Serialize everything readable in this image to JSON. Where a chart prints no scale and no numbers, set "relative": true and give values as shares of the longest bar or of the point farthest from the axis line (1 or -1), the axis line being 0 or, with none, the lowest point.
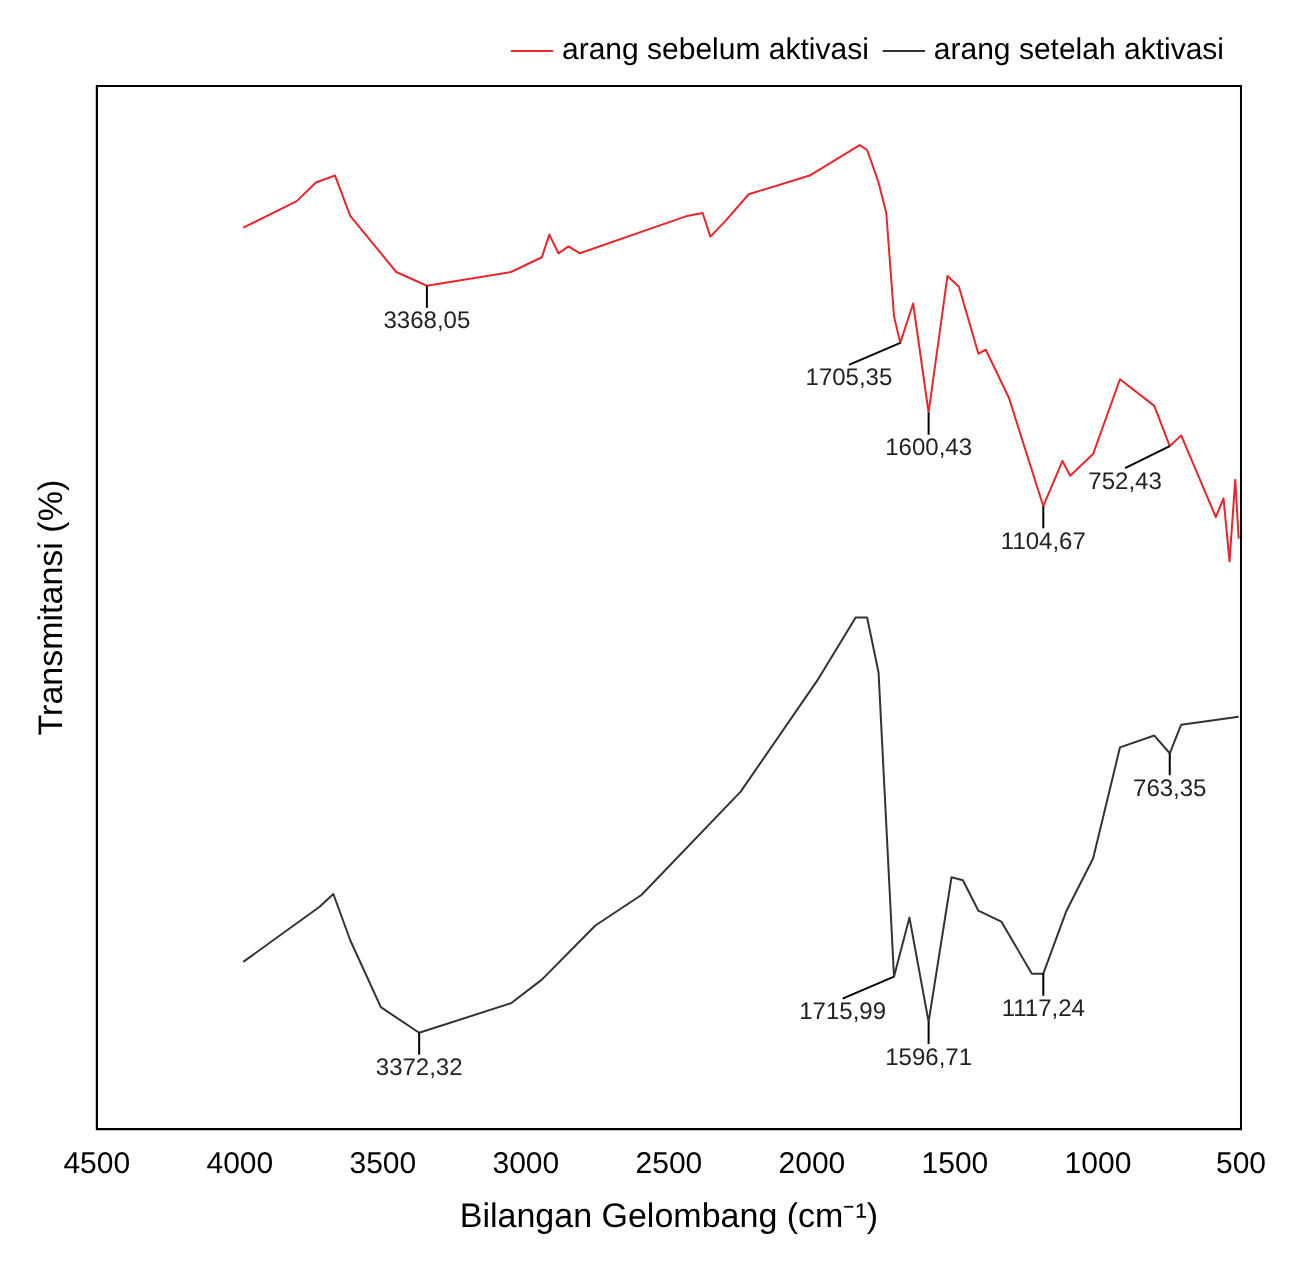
{
  "chart_data": {
    "type": "line",
    "xlabel": "Bilangan Gelombang (cm⁻¹)",
    "ylabel": "Transmitansi (%)",
    "relative": true,
    "xlim": [
      4500,
      500
    ],
    "xticks": [
      4500,
      4000,
      3500,
      3000,
      2500,
      2000,
      1500,
      1000,
      500
    ],
    "grid": false,
    "legend": "top right",
    "marker": "none",
    "line_style": "solid",
    "series": [
      {
        "name": "arang sebelum aktivasi",
        "color": "#e8262a",
        "x": [
          3988,
          3801,
          3734,
          3667,
          3614,
          3453,
          3346,
          3052,
          2944,
          2918,
          2886,
          2851,
          2811,
          2436,
          2382,
          2355,
          2302,
          2221,
          2008,
          1833,
          1807,
          1767,
          1740,
          1713,
          1691,
          1646,
          1592,
          1526,
          1486,
          1418,
          1392,
          1311,
          1191,
          1124,
          1097,
          1017,
          923,
          803,
          749,
          709,
          588,
          561,
          540,
          520,
          508
        ],
        "values": [
          0.916,
          0.943,
          0.962,
          0.969,
          0.928,
          0.871,
          0.857,
          0.871,
          0.886,
          0.909,
          0.89,
          0.897,
          0.89,
          0.928,
          0.931,
          0.907,
          0.923,
          0.95,
          0.969,
          1,
          0.995,
          0.962,
          0.931,
          0.826,
          0.799,
          0.839,
          0.728,
          0.867,
          0.856,
          0.788,
          0.792,
          0.743,
          0.633,
          0.679,
          0.664,
          0.686,
          0.762,
          0.735,
          0.694,
          0.705,
          0.622,
          0.641,
          0.577,
          0.66,
          0.6
        ]
      },
      {
        "name": "arang setelah aktivasi",
        "color": "#333333",
        "x": [
          3988,
          3721,
          3673,
          3614,
          3507,
          3373,
          3052,
          2944,
          2757,
          2596,
          2249,
          1981,
          1847,
          1807,
          1767,
          1713,
          1659,
          1592,
          1512,
          1472,
          1418,
          1338,
          1231,
          1191,
          1110,
          1017,
          923,
          803,
          749,
          709,
          508
        ],
        "values": [
          0.17,
          0.226,
          0.239,
          0.192,
          0.124,
          0.098,
          0.128,
          0.152,
          0.207,
          0.238,
          0.343,
          0.456,
          0.52,
          0.52,
          0.464,
          0.155,
          0.215,
          0.109,
          0.256,
          0.253,
          0.222,
          0.211,
          0.158,
          0.158,
          0.222,
          0.275,
          0.388,
          0.4,
          0.382,
          0.411,
          0.419
        ]
      }
    ],
    "annotations": [
      {
        "text": "3368,05",
        "x": 3346,
        "y": 0.857
      },
      {
        "text": "1705,35",
        "x": 1691,
        "y": 0.799
      },
      {
        "text": "1600,43",
        "x": 1592,
        "y": 0.728
      },
      {
        "text": "1104,67",
        "x": 1191,
        "y": 0.633
      },
      {
        "text": "752,43",
        "x": 749,
        "y": 0.694
      },
      {
        "text": "3372,32",
        "x": 3373,
        "y": 0.098
      },
      {
        "text": "1715,99",
        "x": 1713,
        "y": 0.155
      },
      {
        "text": "1596,71",
        "x": 1592,
        "y": 0.109
      },
      {
        "text": "1117,24",
        "x": 1191,
        "y": 0.158
      },
      {
        "text": "763,35",
        "x": 749,
        "y": 0.382
      }
    ]
  }
}
